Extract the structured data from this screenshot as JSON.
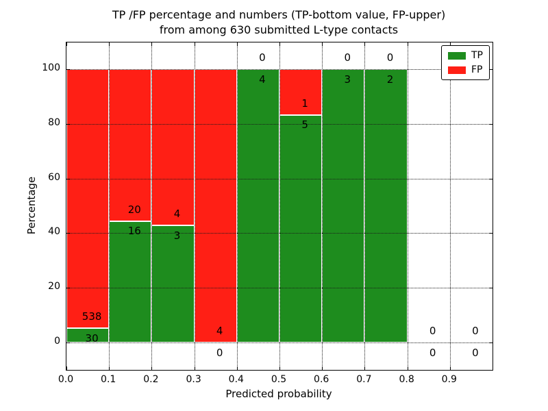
{
  "chart_data": {
    "type": "bar",
    "stacked": true,
    "title": "TP /FP percentage and numbers (TP-bottom value, FP-upper)\nfrom among 630 submitted L-type contacts",
    "title_line1": "TP /FP percentage and numbers (TP-bottom value, FP-upper)",
    "title_line2": "from among 630 submitted L-type contacts",
    "xlabel": "Predicted probability",
    "ylabel": "Percentage",
    "xlim": [
      0.0,
      1.0
    ],
    "ylim": [
      -10,
      110
    ],
    "grid": true,
    "bin_width": 0.1,
    "total_contacts": 630,
    "xticks": [
      "0.0",
      "0.1",
      "0.2",
      "0.3",
      "0.4",
      "0.5",
      "0.6",
      "0.7",
      "0.8",
      "0.9"
    ],
    "yticks": [
      "0",
      "20",
      "40",
      "60",
      "80",
      "100"
    ],
    "bins": [
      {
        "x_start": 0.0,
        "tp": 30,
        "fp": 538
      },
      {
        "x_start": 0.1,
        "tp": 16,
        "fp": 20
      },
      {
        "x_start": 0.2,
        "tp": 3,
        "fp": 4
      },
      {
        "x_start": 0.3,
        "tp": 0,
        "fp": 4
      },
      {
        "x_start": 0.4,
        "tp": 4,
        "fp": 0
      },
      {
        "x_start": 0.5,
        "tp": 5,
        "fp": 1
      },
      {
        "x_start": 0.6,
        "tp": 3,
        "fp": 0
      },
      {
        "x_start": 0.7,
        "tp": 2,
        "fp": 0
      },
      {
        "x_start": 0.8,
        "tp": 0,
        "fp": 0
      },
      {
        "x_start": 0.9,
        "tp": 0,
        "fp": 0
      }
    ],
    "colors": {
      "tp": "#1e8c1e",
      "fp": "#ff1f15"
    },
    "legend": {
      "position": "upper right",
      "entries": [
        {
          "label": "TP",
          "color": "#1e8c1e"
        },
        {
          "label": "FP",
          "color": "#ff1f15"
        }
      ]
    }
  }
}
